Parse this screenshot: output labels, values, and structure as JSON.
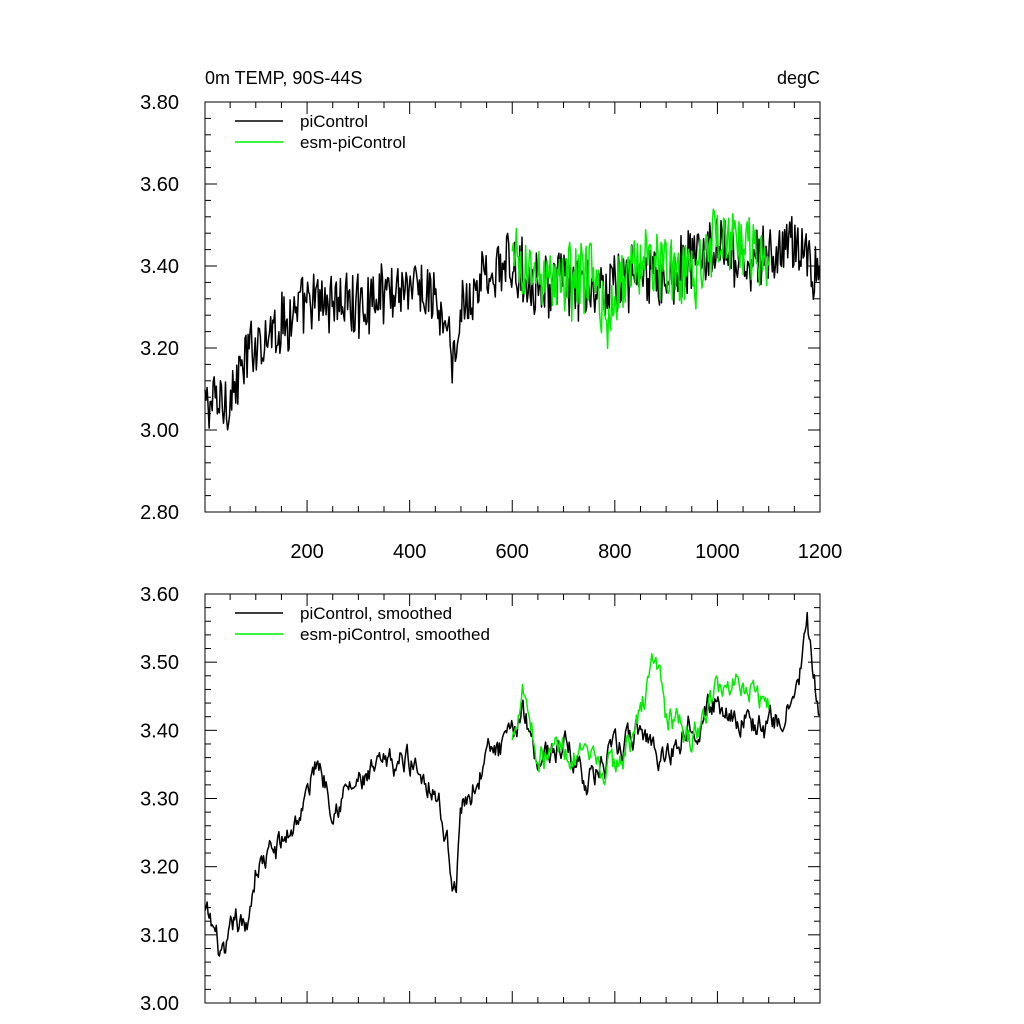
{
  "colors": {
    "piControl": "#000000",
    "esm_piControl": "#00ee00"
  },
  "chart_data": [
    {
      "type": "line",
      "title_left": "0m TEMP, 90S-44S",
      "title_right": "degC",
      "xlim": [
        1,
        1200
      ],
      "ylim": [
        2.8,
        3.8
      ],
      "yticks": [
        "2.80",
        "3.00",
        "3.20",
        "3.40",
        "3.60",
        "3.80"
      ],
      "xticks": [
        "200",
        "400",
        "600",
        "800",
        "1000",
        "1200"
      ],
      "legend_position": "top-left",
      "series": [
        {
          "name": "piControl",
          "color": "#000000",
          "x": [
            1,
            50,
            100,
            150,
            200,
            250,
            300,
            350,
            400,
            450,
            490,
            500,
            550,
            600,
            650,
            700,
            750,
            800,
            850,
            900,
            950,
            1000,
            1050,
            1100,
            1150,
            1200
          ],
          "y": [
            3.06,
            3.08,
            3.22,
            3.26,
            3.3,
            3.32,
            3.3,
            3.34,
            3.36,
            3.32,
            3.15,
            3.3,
            3.38,
            3.4,
            3.36,
            3.36,
            3.33,
            3.36,
            3.38,
            3.36,
            3.42,
            3.44,
            3.4,
            3.42,
            3.46,
            3.38
          ],
          "noise": 0.07
        },
        {
          "name": "esm-piControl",
          "color": "#00ee00",
          "x": [
            600,
            650,
            700,
            750,
            790,
            800,
            850,
            900,
            950,
            1000,
            1050,
            1100
          ],
          "y": [
            3.4,
            3.38,
            3.36,
            3.38,
            3.26,
            3.34,
            3.42,
            3.4,
            3.36,
            3.48,
            3.46,
            3.42
          ],
          "noise": 0.08
        }
      ]
    },
    {
      "type": "line",
      "xlim": [
        1,
        1200
      ],
      "ylim": [
        3.0,
        3.6
      ],
      "yticks": [
        "3.00",
        "3.10",
        "3.20",
        "3.30",
        "3.40",
        "3.50",
        "3.60"
      ],
      "legend_position": "top-left",
      "series": [
        {
          "name": "piControl, smoothed",
          "color": "#000000",
          "x": [
            1,
            20,
            40,
            60,
            80,
            100,
            150,
            200,
            220,
            250,
            300,
            350,
            400,
            450,
            490,
            500,
            550,
            600,
            620,
            650,
            700,
            750,
            800,
            850,
            900,
            950,
            1000,
            1050,
            1100,
            1150,
            1175,
            1200
          ],
          "y": [
            3.13,
            3.1,
            3.05,
            3.12,
            3.1,
            3.2,
            3.23,
            3.3,
            3.36,
            3.3,
            3.32,
            3.34,
            3.36,
            3.32,
            3.17,
            3.28,
            3.36,
            3.38,
            3.44,
            3.36,
            3.38,
            3.33,
            3.36,
            3.4,
            3.36,
            3.42,
            3.44,
            3.42,
            3.4,
            3.44,
            3.55,
            3.4
          ],
          "noise": 0.028
        },
        {
          "name": "esm-piControl, smoothed",
          "color": "#00ee00",
          "x": [
            600,
            620,
            650,
            700,
            750,
            800,
            850,
            880,
            900,
            950,
            1000,
            1050,
            1100
          ],
          "y": [
            3.38,
            3.48,
            3.36,
            3.38,
            3.34,
            3.34,
            3.42,
            3.52,
            3.42,
            3.38,
            3.46,
            3.48,
            3.44
          ],
          "noise": 0.028
        }
      ]
    }
  ]
}
